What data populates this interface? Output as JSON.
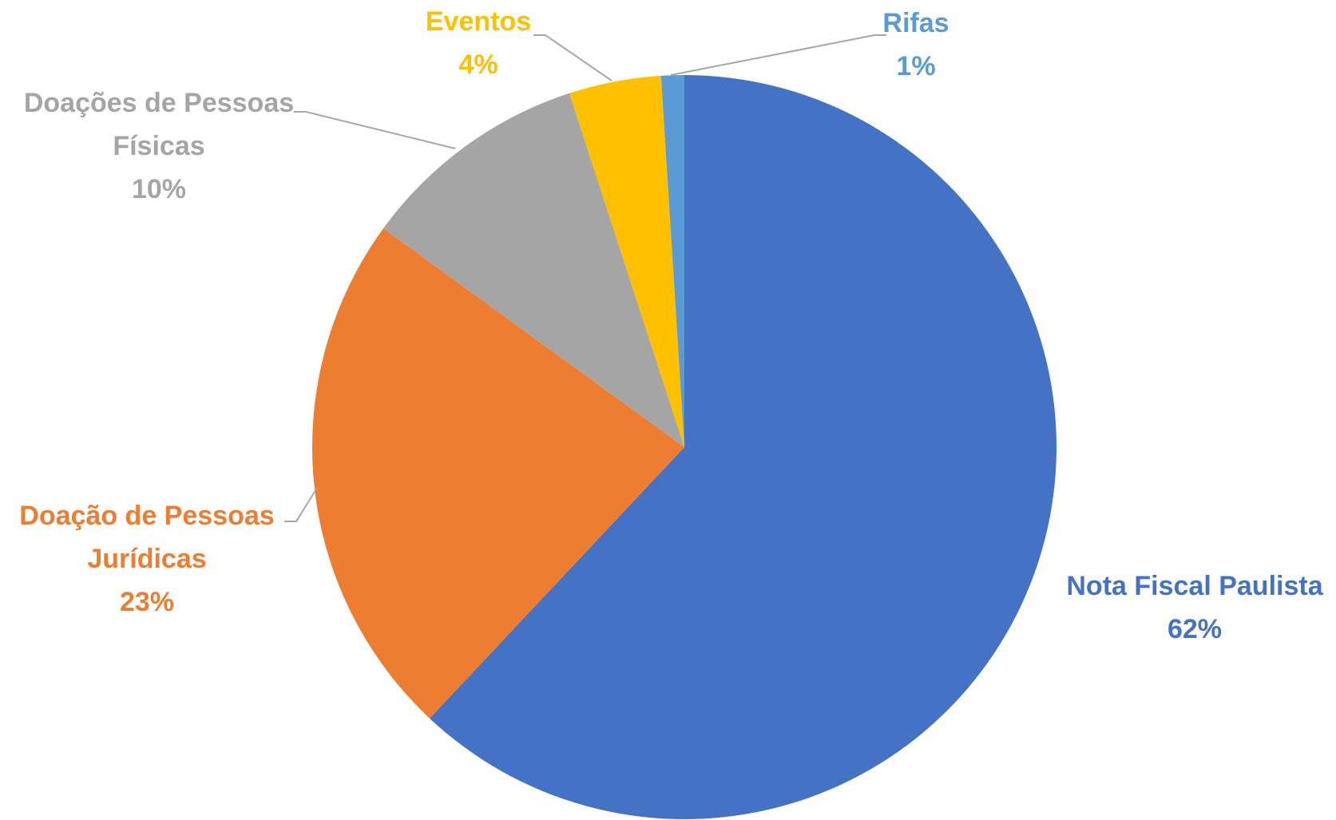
{
  "chart_data": {
    "type": "pie",
    "title": "",
    "start_angle_deg": 0,
    "direction": "clockwise",
    "legend": "none",
    "slices": [
      {
        "label_lines": [
          "Nota Fiscal Paulista"
        ],
        "value": 62,
        "percent_label": "62%",
        "color": "#4472c4"
      },
      {
        "label_lines": [
          "Doação de Pessoas",
          "Jurídicas"
        ],
        "value": 23,
        "percent_label": "23%",
        "color": "#ed7d31"
      },
      {
        "label_lines": [
          "Doações de Pessoas",
          "Físicas"
        ],
        "value": 10,
        "percent_label": "10%",
        "color": "#a5a5a5"
      },
      {
        "label_lines": [
          "Eventos"
        ],
        "value": 4,
        "percent_label": "4%",
        "color": "#ffc000"
      },
      {
        "label_lines": [
          "Rifas"
        ],
        "value": 1,
        "percent_label": "1%",
        "color": "#5b9bd5"
      }
    ]
  }
}
